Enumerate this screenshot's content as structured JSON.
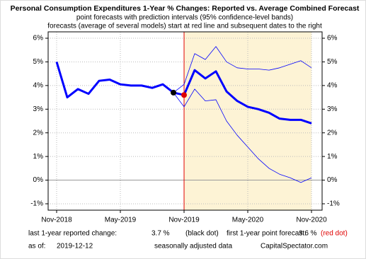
{
  "chart_data": {
    "type": "line",
    "title": "Personal Consumption Expenditures 1-Year % Changes: Reported vs. Average Combined Forecast",
    "subtitle": [
      "point forecasts with prediction intervals (95% confidence-level bands)",
      "forecasts (average of several models) start at red line and subsequent dates to the right"
    ],
    "categories": [
      "Nov-2018",
      null,
      null,
      null,
      null,
      null,
      "May-2019",
      null,
      null,
      null,
      null,
      null,
      "Nov-2019",
      null,
      null,
      null,
      null,
      null,
      "May-2020",
      null,
      null,
      null,
      null,
      null,
      "Nov-2020"
    ],
    "series": [
      {
        "name": "reported",
        "color": "#0000ff",
        "values": [
          5.0,
          3.5,
          3.85,
          3.65,
          4.2,
          4.25,
          4.05,
          4.0,
          4.0,
          3.9,
          4.05,
          3.7,
          null,
          null,
          null,
          null,
          null,
          null,
          null,
          null,
          null,
          null,
          null,
          null,
          null
        ]
      },
      {
        "name": "forecast",
        "color": "#0000ff",
        "values": [
          null,
          null,
          null,
          null,
          null,
          null,
          null,
          null,
          null,
          null,
          null,
          3.7,
          3.6,
          4.65,
          4.3,
          4.6,
          3.75,
          3.35,
          3.1,
          3.0,
          2.85,
          2.6,
          2.55,
          2.55,
          2.4
        ]
      },
      {
        "name": "upper",
        "color": "#0000ff",
        "values": [
          null,
          null,
          null,
          null,
          null,
          null,
          null,
          null,
          null,
          null,
          null,
          3.7,
          4.05,
          5.35,
          5.1,
          5.65,
          5.0,
          4.75,
          4.7,
          4.7,
          4.65,
          4.75,
          4.9,
          5.05,
          4.75
        ]
      },
      {
        "name": "lower",
        "color": "#0000ff",
        "values": [
          null,
          null,
          null,
          null,
          null,
          null,
          null,
          null,
          null,
          null,
          null,
          3.7,
          3.1,
          3.85,
          3.35,
          3.4,
          2.5,
          1.9,
          1.4,
          0.9,
          0.5,
          0.25,
          0.1,
          -0.1,
          0.1
        ]
      }
    ],
    "ylim": [
      -1.27,
      6.27
    ],
    "yticks": [
      {
        "value": -1,
        "label": "-1%"
      },
      {
        "value": 0,
        "label": "0%"
      },
      {
        "value": 1,
        "label": "1%"
      },
      {
        "value": 2,
        "label": "2%"
      },
      {
        "value": 3,
        "label": "3%"
      },
      {
        "value": 4,
        "label": "4%"
      },
      {
        "value": 5,
        "label": "5%"
      },
      {
        "value": 6,
        "label": "6%"
      }
    ],
    "forecast_start": 12,
    "grid": true,
    "footer": {
      "last_label": "last 1-year reported change:",
      "last_value": "3.7 %",
      "last_note": "(black dot)",
      "first_label": "first 1-year point forecast:",
      "first_value": "3.6 %",
      "first_note": "(red dot)",
      "asof_label": "as of:",
      "asof_value": "2019-12-12",
      "adjusted": "seasonally adjusted data",
      "source": "CapitalSpectator.com"
    }
  }
}
